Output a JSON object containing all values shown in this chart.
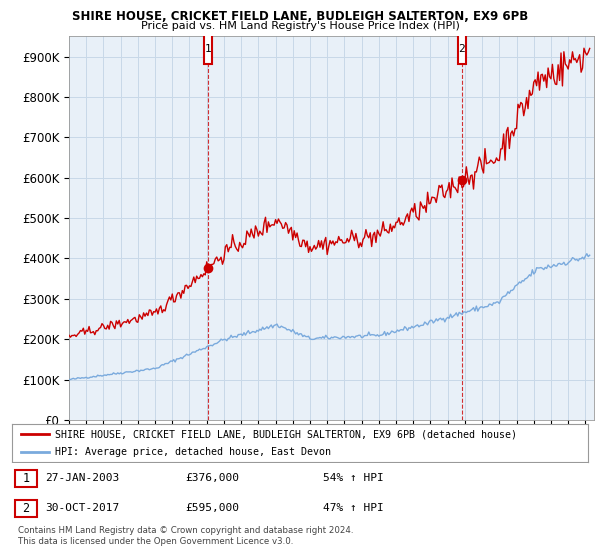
{
  "title1": "SHIRE HOUSE, CRICKET FIELD LANE, BUDLEIGH SALTERTON, EX9 6PB",
  "title2": "Price paid vs. HM Land Registry's House Price Index (HPI)",
  "ylabel_ticks": [
    "£0",
    "£100K",
    "£200K",
    "£300K",
    "£400K",
    "£500K",
    "£600K",
    "£700K",
    "£800K",
    "£900K"
  ],
  "ytick_values": [
    0,
    100000,
    200000,
    300000,
    400000,
    500000,
    600000,
    700000,
    800000,
    900000
  ],
  "ylim": [
    0,
    950000
  ],
  "xlim_start": 1995.0,
  "xlim_end": 2025.5,
  "sale1_x": 2003.07,
  "sale1_y": 376000,
  "sale2_x": 2017.83,
  "sale2_y": 595000,
  "red_color": "#cc0000",
  "blue_color": "#7aaadd",
  "chart_bg": "#e8f0f8",
  "legend_red": "SHIRE HOUSE, CRICKET FIELD LANE, BUDLEIGH SALTERTON, EX9 6PB (detached house)",
  "legend_blue": "HPI: Average price, detached house, East Devon",
  "footnote": "Contains HM Land Registry data © Crown copyright and database right 2024.\nThis data is licensed under the Open Government Licence v3.0.",
  "background_color": "#ffffff",
  "grid_color": "#c8d8e8"
}
